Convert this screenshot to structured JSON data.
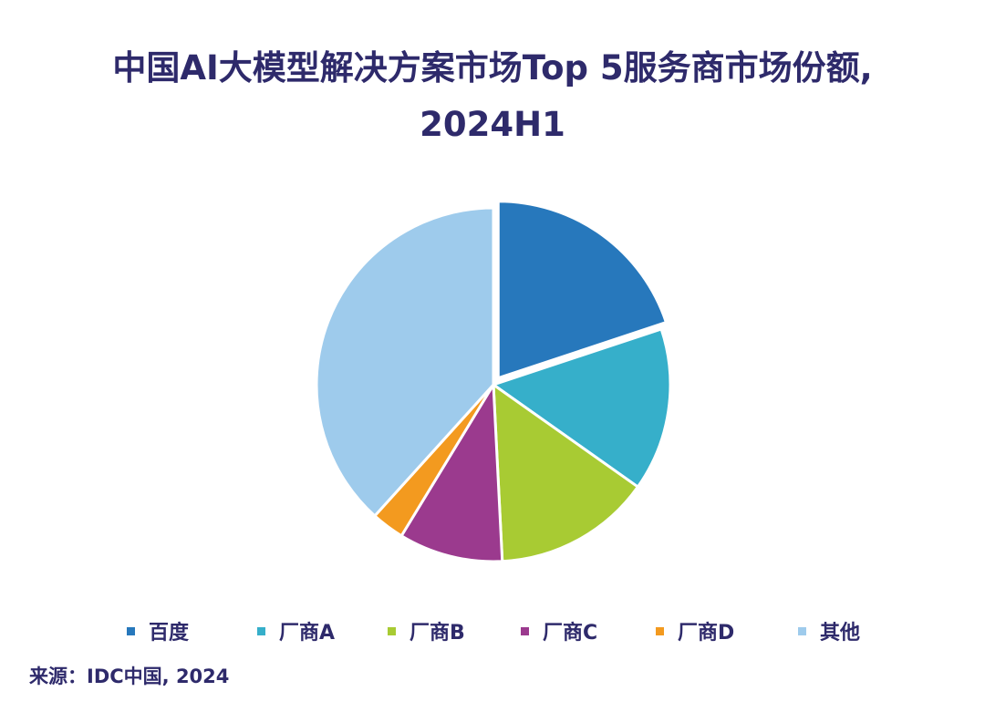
{
  "chart_data": {
    "type": "pie",
    "title_line1": "中国AI大模型解决方案市场Top 5服务商市场份额,",
    "title_line2": "2024H1",
    "slices": [
      {
        "label": "百度",
        "value": 19.9,
        "color": "#2778bc"
      },
      {
        "label": "厂商A",
        "value": 14.9,
        "color": "#36afca"
      },
      {
        "label": "厂商B",
        "value": 14.4,
        "color": "#a8cb33"
      },
      {
        "label": "厂商C",
        "value": 9.5,
        "color": "#9b3a8e"
      },
      {
        "label": "厂商D",
        "value": 3.0,
        "color": "#f39a1f"
      },
      {
        "label": "其他",
        "value": 38.3,
        "color": "#9ecbec"
      }
    ],
    "exploded_slice": "百度",
    "legend_position": "bottom",
    "source": "来源：IDC中国, 2024"
  }
}
